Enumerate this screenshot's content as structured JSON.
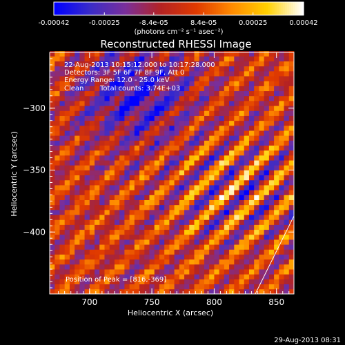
{
  "colorbar": {
    "tick_labels": [
      "-0.00042",
      "-0.00025",
      "-8.4e-05",
      "8.4e-05",
      "0.00025",
      "0.00042"
    ],
    "tick_values": [
      -0.00042,
      -0.00025,
      -8.4e-05,
      8.4e-05,
      0.00025,
      0.00042
    ],
    "range": [
      -0.00042,
      0.00042
    ],
    "units_text": "(photons cm⁻² s⁻¹ asec⁻²)",
    "colormap": [
      "#0000ff",
      "#3a2cc8",
      "#7a2f9a",
      "#b42323",
      "#e03a00",
      "#ff8a00",
      "#ffd000",
      "#ffffff"
    ]
  },
  "annotations": {
    "time_range": "22-Aug-2013 10:15:12.000 to 10:17:28.000",
    "detectors": "Detectors: 3F 5F 6F 7F 8F 9F, Att 0",
    "energy": "Energy Range: 12.0 - 25.0 keV",
    "clean_label": "Clean",
    "total_counts": "Total counts: 3.74E+03",
    "peak_position": "Position of Peak = [816,-369]"
  },
  "footer_timestamp": "29-Aug-2013 08:31",
  "chart_data": {
    "type": "heatmap",
    "title": "Reconstructed RHESSI Image",
    "xlabel": "Heliocentric X (arcsec)",
    "ylabel": "Heliocentric Y (arcsec)",
    "xlim": [
      668,
      864
    ],
    "ylim": [
      -450,
      -255
    ],
    "x_ticks": [
      700,
      750,
      800,
      850
    ],
    "y_ticks": [
      -300,
      -350,
      -400
    ],
    "peak": [
      816,
      -369
    ],
    "limb_line": [
      [
        833,
        -450
      ],
      [
        864,
        -387
      ]
    ],
    "pixel_size_arcsec": 4,
    "pattern": "diagonal stripes oriented lower-left to upper-right, brightest (yellow/white) around [816,-369], bluest in upper-left near [730,-290]"
  }
}
